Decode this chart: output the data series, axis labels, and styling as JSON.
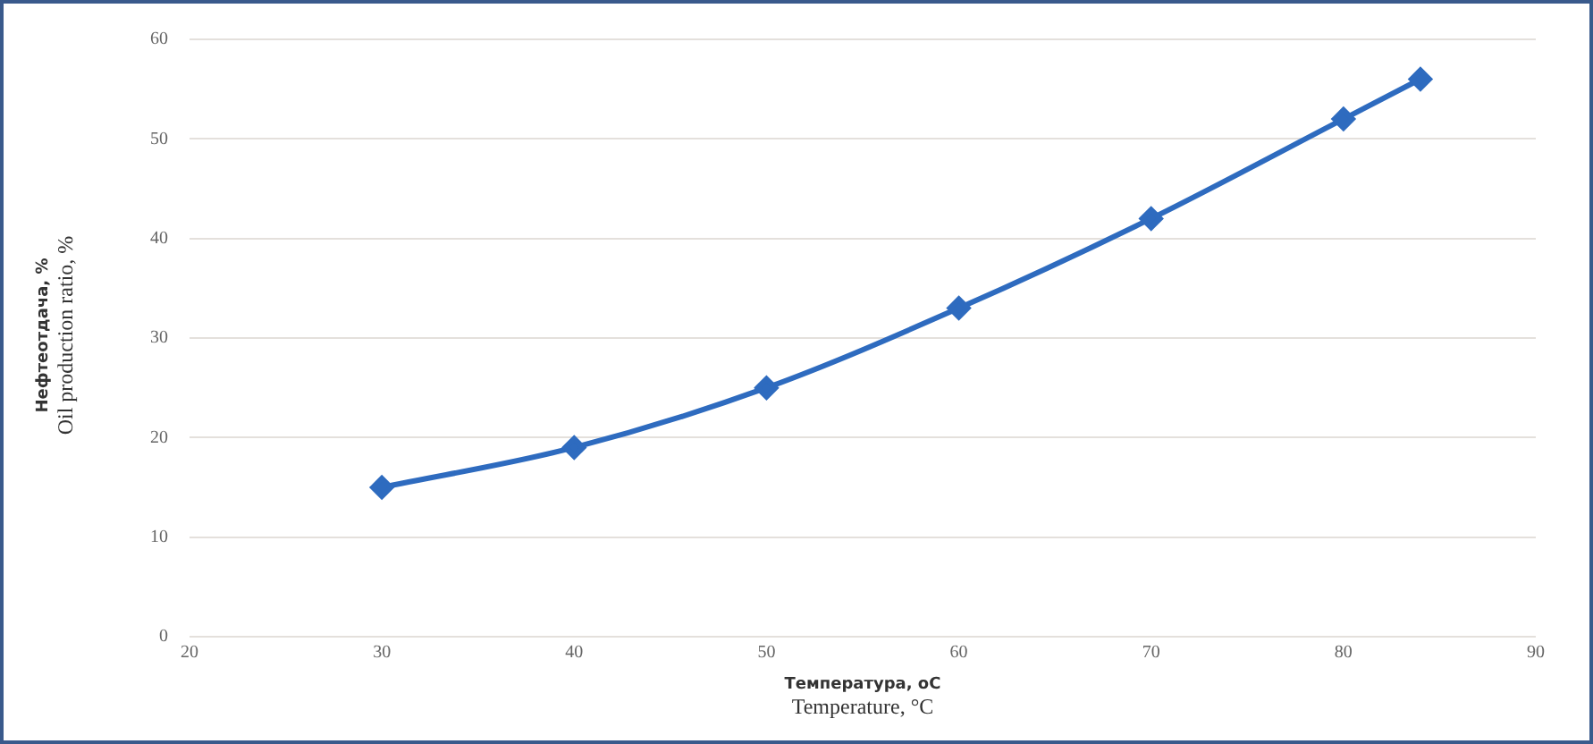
{
  "chart_data": {
    "type": "line",
    "xlabel": "Температура, оС\nTemperature, °C",
    "ylabel": "Нефтеотдача, %\nOil production ratio, %",
    "x": [
      30,
      40,
      50,
      60,
      70,
      80,
      84
    ],
    "series": [
      {
        "color": "#2e6bbf",
        "values": [
          15,
          19,
          25,
          33,
          42,
          52,
          56
        ]
      }
    ],
    "xlim": [
      20,
      90
    ],
    "xticks": [
      20,
      30,
      40,
      50,
      60,
      70,
      80,
      90
    ],
    "ylim": [
      0,
      60
    ],
    "yticks": [
      0,
      10,
      20,
      30,
      40,
      50,
      60
    ],
    "grid": "y",
    "legend": false,
    "marker": "diamond",
    "line_style": "solid"
  }
}
